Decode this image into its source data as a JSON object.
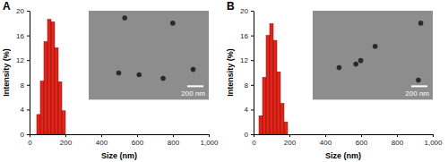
{
  "chart_data": [
    {
      "type": "histogram",
      "title": "A",
      "xlabel": "Size (nm)",
      "ylabel": "Intensity (%)",
      "bins": [
        40,
        60,
        80,
        100,
        120,
        140,
        160,
        180,
        200
      ],
      "values": [
        3.2,
        8.6,
        15.0,
        18.6,
        18.2,
        14.0,
        8.5,
        3.8
      ],
      "color": "#e3241b",
      "xlim": [
        0,
        1000
      ],
      "ylim": [
        0,
        20
      ],
      "xticks": [
        0,
        200,
        400,
        600,
        800,
        {
          "value": 1000,
          "label": "1,000"
        }
      ],
      "yticks": [
        0,
        4,
        8,
        12,
        16,
        20
      ],
      "annotation": "200 nm"
    },
    {
      "type": "histogram",
      "title": "B",
      "xlabel": "Size (nm)",
      "ylabel": "Intensity (%)",
      "bins": [
        30,
        50,
        70,
        90,
        110,
        130,
        150,
        170,
        190
      ],
      "values": [
        3.0,
        9.2,
        16.0,
        17.9,
        15.2,
        10.1,
        5.0,
        2.0
      ],
      "color": "#e3241b",
      "xlim": [
        0,
        1000
      ],
      "ylim": [
        0,
        20
      ],
      "xticks": [
        0,
        200,
        400,
        600,
        800,
        {
          "value": 1000,
          "label": "1,000"
        }
      ],
      "yticks": [
        0,
        4,
        8,
        12,
        16,
        20
      ],
      "annotation": "200 nm"
    }
  ]
}
